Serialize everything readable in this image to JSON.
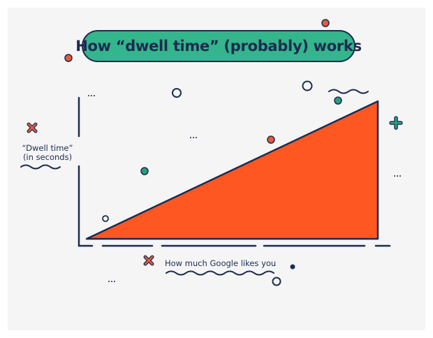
{
  "title": "How “dwell time” (probably) works",
  "y_axis_label_line1": "“Dwell time”",
  "y_axis_label_line2": "(in seconds)",
  "x_axis_label": "How much Google likes you",
  "colors": {
    "title_background": "#34b58c",
    "outline": "#1d2b4f",
    "triangle_fill": "#ff5722",
    "accent_red": "#e85a3a",
    "accent_teal": "#2a9d7e",
    "background": "#f5f5f6"
  },
  "decorations": [
    "cross-icon",
    "plus-icon",
    "circle-icon",
    "dot-icon",
    "wavy-line",
    "ellipsis"
  ]
}
